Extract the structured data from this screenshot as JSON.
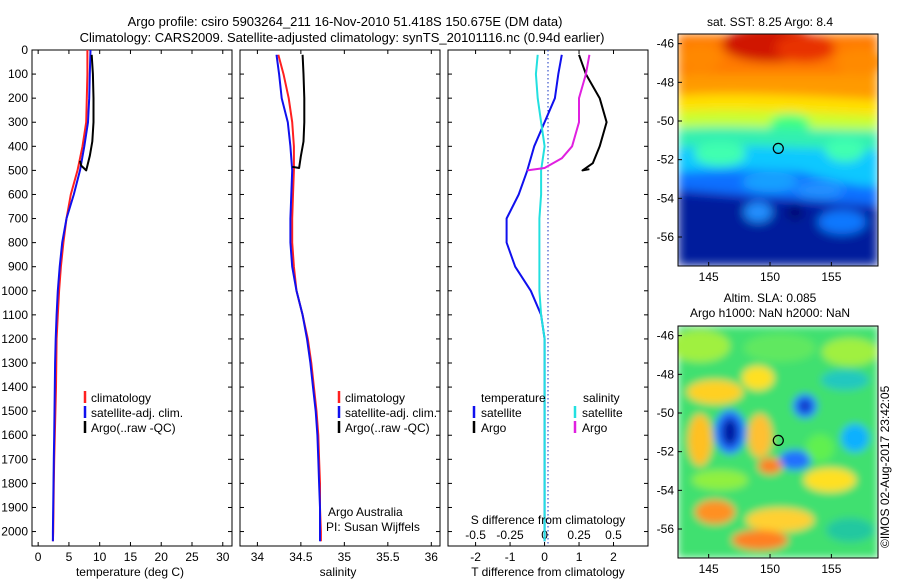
{
  "header": {
    "title_line1": "Argo profile: csiro 5903264_211 16-Nov-2010 51.418S 150.675E (DM data)",
    "title_line2": "Climatology: CARS2009. Satellite-adjusted climatology: synTS_20101116.nc (0.94d earlier)"
  },
  "colors": {
    "climatology": "#ff2020",
    "satellite": "#1010ee",
    "argo": "#000000",
    "sat_salinity": "#22e0e0",
    "argo_salinity": "#e020e0"
  },
  "chart_data": [
    {
      "id": "temperature",
      "type": "line",
      "xlabel": "temperature (deg C)",
      "ylabel": "",
      "xlim": [
        -1,
        31.5
      ],
      "ylim": [
        2060,
        0
      ],
      "xticks": [
        0,
        5,
        10,
        15,
        20,
        25,
        30
      ],
      "yticks": [
        0,
        100,
        200,
        300,
        400,
        500,
        600,
        700,
        800,
        900,
        1000,
        1100,
        1200,
        1300,
        1400,
        1500,
        1600,
        1700,
        1800,
        1900,
        2000
      ],
      "legend": {
        "position": "middle-right",
        "entries": [
          "climatology",
          "satellite-adj. clim.",
          "Argo(..raw -QC)"
        ]
      },
      "series": [
        {
          "name": "climatology",
          "color": "#ff2020",
          "points": [
            [
              8.0,
              0
            ],
            [
              8.0,
              100
            ],
            [
              7.9,
              200
            ],
            [
              7.8,
              300
            ],
            [
              7.2,
              400
            ],
            [
              6.4,
              500
            ],
            [
              5.3,
              600
            ],
            [
              4.6,
              700
            ],
            [
              4.1,
              800
            ],
            [
              3.7,
              900
            ],
            [
              3.4,
              1000
            ],
            [
              3.2,
              1100
            ],
            [
              3.0,
              1200
            ],
            [
              2.95,
              1300
            ],
            [
              2.9,
              1400
            ],
            [
              2.8,
              1500
            ],
            [
              2.7,
              1600
            ],
            [
              2.6,
              1700
            ],
            [
              2.55,
              1800
            ],
            [
              2.5,
              1900
            ],
            [
              2.45,
              2000
            ],
            [
              2.4,
              2040
            ]
          ]
        },
        {
          "name": "satellite-adj. clim.",
          "color": "#1010ee",
          "points": [
            [
              8.5,
              0
            ],
            [
              8.4,
              100
            ],
            [
              8.3,
              200
            ],
            [
              8.1,
              300
            ],
            [
              7.5,
              400
            ],
            [
              6.8,
              500
            ],
            [
              5.8,
              600
            ],
            [
              4.6,
              700
            ],
            [
              3.9,
              800
            ],
            [
              3.5,
              900
            ],
            [
              3.2,
              1000
            ],
            [
              3.0,
              1100
            ],
            [
              2.85,
              1200
            ],
            [
              2.75,
              1300
            ],
            [
              2.7,
              1400
            ],
            [
              2.65,
              1500
            ],
            [
              2.6,
              1600
            ],
            [
              2.55,
              1700
            ],
            [
              2.5,
              1800
            ],
            [
              2.45,
              1900
            ],
            [
              2.4,
              2000
            ],
            [
              2.4,
              2040
            ]
          ]
        },
        {
          "name": "Argo(..raw -QC)",
          "color": "#000000",
          "points": [
            [
              8.7,
              20
            ],
            [
              8.9,
              100
            ],
            [
              9.0,
              200
            ],
            [
              9.0,
              300
            ],
            [
              8.8,
              380
            ],
            [
              8.4,
              440
            ],
            [
              8.0,
              480
            ],
            [
              7.8,
              500
            ],
            [
              7.0,
              480
            ],
            [
              6.8,
              460
            ]
          ]
        }
      ]
    },
    {
      "id": "salinity",
      "type": "line",
      "xlabel": "salinity",
      "ylabel": "",
      "xlim": [
        33.8,
        36.1
      ],
      "ylim": [
        2060,
        0
      ],
      "xticks": [
        34,
        34.5,
        35,
        35.5,
        36
      ],
      "legend": {
        "position": "middle-right",
        "entries": [
          "climatology",
          "satellite-adj. clim.",
          "Argo(..raw -QC)"
        ]
      },
      "annotations": [
        "Argo Australia",
        "PI: Susan Wijffels"
      ],
      "series": [
        {
          "name": "climatology",
          "color": "#ff2020",
          "points": [
            [
              34.24,
              20
            ],
            [
              34.3,
              100
            ],
            [
              34.36,
              200
            ],
            [
              34.4,
              300
            ],
            [
              34.42,
              400
            ],
            [
              34.42,
              500
            ],
            [
              34.41,
              600
            ],
            [
              34.4,
              700
            ],
            [
              34.4,
              800
            ],
            [
              34.42,
              900
            ],
            [
              34.45,
              1000
            ],
            [
              34.52,
              1100
            ],
            [
              34.58,
              1200
            ],
            [
              34.62,
              1300
            ],
            [
              34.65,
              1400
            ],
            [
              34.68,
              1500
            ],
            [
              34.7,
              1600
            ],
            [
              34.71,
              1700
            ],
            [
              34.72,
              1800
            ],
            [
              34.72,
              1900
            ],
            [
              34.73,
              2000
            ],
            [
              34.73,
              2040
            ]
          ]
        },
        {
          "name": "satellite-adj. clim.",
          "color": "#1010ee",
          "points": [
            [
              34.22,
              20
            ],
            [
              34.25,
              100
            ],
            [
              34.28,
              200
            ],
            [
              34.35,
              300
            ],
            [
              34.38,
              400
            ],
            [
              34.4,
              500
            ],
            [
              34.39,
              600
            ],
            [
              34.38,
              700
            ],
            [
              34.38,
              800
            ],
            [
              34.4,
              900
            ],
            [
              34.45,
              1000
            ],
            [
              34.52,
              1100
            ],
            [
              34.57,
              1200
            ],
            [
              34.61,
              1300
            ],
            [
              34.64,
              1400
            ],
            [
              34.67,
              1500
            ],
            [
              34.69,
              1600
            ],
            [
              34.7,
              1700
            ],
            [
              34.71,
              1800
            ],
            [
              34.72,
              1900
            ],
            [
              34.72,
              2000
            ],
            [
              34.72,
              2040
            ]
          ]
        },
        {
          "name": "Argo(..raw -QC)",
          "color": "#000000",
          "points": [
            [
              34.52,
              20
            ],
            [
              34.53,
              100
            ],
            [
              34.54,
              200
            ],
            [
              34.54,
              300
            ],
            [
              34.53,
              380
            ],
            [
              34.5,
              440
            ],
            [
              34.48,
              490
            ],
            [
              34.4,
              485
            ]
          ]
        }
      ]
    },
    {
      "id": "difference",
      "type": "line",
      "xlabel": "T difference from climatology",
      "top_xlabel": "S difference from climatology",
      "ylabel": "",
      "xlim": [
        -2.8,
        3.0
      ],
      "ylim": [
        2060,
        0
      ],
      "xticks": [
        -2,
        -1,
        0,
        1,
        2
      ],
      "top_xticks": [
        "-0.5",
        "-0.25",
        "0",
        "0.25",
        "0.5"
      ],
      "legend": {
        "position": "middle",
        "headers": [
          "temperature",
          "salinity"
        ],
        "entries": [
          "satellite",
          "Argo",
          "satellite",
          "Argo"
        ]
      },
      "series": [
        {
          "name": "T satellite",
          "color": "#1010ee",
          "points": [
            [
              0.5,
              20
            ],
            [
              0.4,
              100
            ],
            [
              0.3,
              200
            ],
            [
              0.0,
              300
            ],
            [
              -0.3,
              400
            ],
            [
              -0.5,
              500
            ],
            [
              -0.75,
              600
            ],
            [
              -1.1,
              700
            ],
            [
              -1.1,
              800
            ],
            [
              -0.85,
              900
            ],
            [
              -0.4,
              1000
            ],
            [
              -0.1,
              1100
            ],
            [
              0.0,
              1200
            ],
            [
              0.0,
              1400
            ],
            [
              0.0,
              1600
            ],
            [
              0.0,
              2040
            ]
          ]
        },
        {
          "name": "T Argo",
          "color": "#000000",
          "points": [
            [
              1.0,
              20
            ],
            [
              1.2,
              100
            ],
            [
              1.6,
              200
            ],
            [
              1.8,
              300
            ],
            [
              1.6,
              400
            ],
            [
              1.4,
              470
            ],
            [
              1.1,
              500
            ],
            [
              1.3,
              495
            ]
          ]
        },
        {
          "name": "S satellite",
          "color": "#22e0e0",
          "points": [
            [
              -0.2,
              20
            ],
            [
              -0.25,
              100
            ],
            [
              -0.2,
              200
            ],
            [
              -0.1,
              300
            ],
            [
              0.0,
              400
            ],
            [
              -0.1,
              500
            ],
            [
              -0.1,
              600
            ],
            [
              -0.15,
              700
            ],
            [
              -0.15,
              800
            ],
            [
              -0.15,
              900
            ],
            [
              -0.15,
              1000
            ],
            [
              -0.1,
              1100
            ],
            [
              0.0,
              1200
            ],
            [
              0.0,
              1400
            ],
            [
              0.0,
              2040
            ]
          ]
        },
        {
          "name": "S Argo",
          "color": "#e020e0",
          "points": [
            [
              1.3,
              20
            ],
            [
              1.2,
              100
            ],
            [
              1.0,
              200
            ],
            [
              1.0,
              300
            ],
            [
              0.8,
              400
            ],
            [
              0.5,
              450
            ],
            [
              0.0,
              490
            ],
            [
              -0.5,
              500
            ]
          ]
        }
      ]
    },
    {
      "id": "sst_map",
      "type": "heatmap",
      "title": "sat. SST: 8.25  Argo: 8.4",
      "xlim": [
        142.5,
        158.8
      ],
      "ylim": [
        -57.5,
        -45.5
      ],
      "xticks": [
        145,
        150,
        155
      ],
      "yticks": [
        -46,
        -48,
        -50,
        -52,
        -54,
        -56
      ],
      "marker": {
        "lon": 150.675,
        "lat": -51.418
      },
      "colormap": "jet"
    },
    {
      "id": "sla_map",
      "type": "heatmap",
      "title": "Altim. SLA: 0.085",
      "subtitle": "Argo h1000: NaN h2000: NaN",
      "xlim": [
        142.5,
        158.8
      ],
      "ylim": [
        -57.5,
        -45.5
      ],
      "xticks": [
        145,
        150,
        155
      ],
      "yticks": [
        -46,
        -48,
        -50,
        -52,
        -54,
        -56
      ],
      "marker": {
        "lon": 150.675,
        "lat": -51.418
      },
      "colormap": "jet"
    }
  ],
  "footer": {
    "stamp": "©IMOS 02-Aug-2017 23:42:05"
  }
}
